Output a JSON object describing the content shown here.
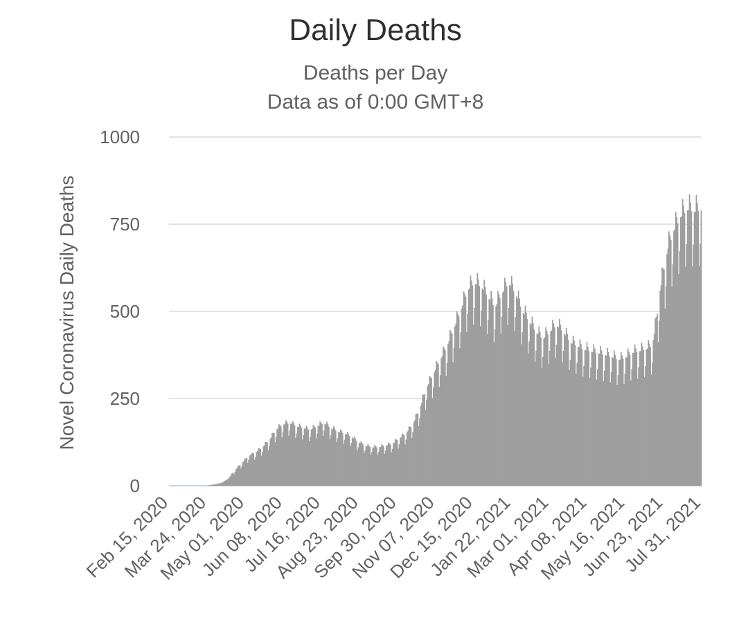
{
  "chart_data": {
    "type": "bar",
    "title": "Daily Deaths",
    "subtitle_lines": [
      "Deaths per Day",
      "Data as of 0:00 GMT+8"
    ],
    "xlabel": "",
    "ylabel": "Novel Coronavirus Daily Deaths",
    "ylim": [
      0,
      1000
    ],
    "yticks": [
      0,
      250,
      500,
      750,
      1000
    ],
    "grid": true,
    "x_start": "Feb 15, 2020",
    "x_end": "Aug 12, 2021",
    "xtick_labels": [
      "Feb 15, 2020",
      "Mar 24, 2020",
      "May 01, 2020",
      "Jun 08, 2020",
      "Jul 16, 2020",
      "Aug 23, 2020",
      "Sep 30, 2020",
      "Nov 07, 2020",
      "Dec 15, 2020",
      "Jan 22, 2021",
      "Mar 01, 2021",
      "Apr 08, 2021",
      "May 16, 2021",
      "Jun 23, 2021",
      "Jul 31, 2021"
    ],
    "bar_color": "#9e9e9e",
    "series": [
      {
        "weekly_points": [
          [
            "Feb 15, 2020",
            0
          ],
          [
            "Mar 24, 2020",
            0
          ],
          [
            "Apr 08, 2020",
            8
          ],
          [
            "Apr 15, 2020",
            20
          ],
          [
            "Apr 22, 2020",
            45
          ],
          [
            "Apr 29, 2020",
            65
          ],
          [
            "May 06, 2020",
            85
          ],
          [
            "May 13, 2020",
            95
          ],
          [
            "May 20, 2020",
            110
          ],
          [
            "May 27, 2020",
            130
          ],
          [
            "Jun 03, 2020",
            160
          ],
          [
            "Jun 10, 2020",
            175
          ],
          [
            "Jun 17, 2020",
            180
          ],
          [
            "Jun 24, 2020",
            170
          ],
          [
            "Jul 01, 2020",
            165
          ],
          [
            "Jul 08, 2020",
            160
          ],
          [
            "Jul 15, 2020",
            170
          ],
          [
            "Jul 22, 2020",
            180
          ],
          [
            "Jul 29, 2020",
            165
          ],
          [
            "Aug 05, 2020",
            155
          ],
          [
            "Aug 12, 2020",
            150
          ],
          [
            "Aug 19, 2020",
            140
          ],
          [
            "Aug 26, 2020",
            125
          ],
          [
            "Sep 02, 2020",
            115
          ],
          [
            "Sep 09, 2020",
            110
          ],
          [
            "Sep 16, 2020",
            110
          ],
          [
            "Sep 23, 2020",
            115
          ],
          [
            "Sep 30, 2020",
            120
          ],
          [
            "Oct 07, 2020",
            135
          ],
          [
            "Oct 14, 2020",
            150
          ],
          [
            "Oct 21, 2020",
            175
          ],
          [
            "Oct 28, 2020",
            220
          ],
          [
            "Nov 04, 2020",
            280
          ],
          [
            "Nov 11, 2020",
            320
          ],
          [
            "Nov 18, 2020",
            360
          ],
          [
            "Nov 25, 2020",
            400
          ],
          [
            "Dec 02, 2020",
            450
          ],
          [
            "Dec 09, 2020",
            500
          ],
          [
            "Dec 16, 2020",
            560
          ],
          [
            "Dec 23, 2020",
            580
          ],
          [
            "Dec 30, 2020",
            570
          ],
          [
            "Jan 06, 2021",
            540
          ],
          [
            "Jan 13, 2021",
            510
          ],
          [
            "Jan 20, 2021",
            550
          ],
          [
            "Jan 27, 2021",
            580
          ],
          [
            "Feb 03, 2021",
            550
          ],
          [
            "Feb 10, 2021",
            500
          ],
          [
            "Feb 17, 2021",
            470
          ],
          [
            "Feb 24, 2021",
            440
          ],
          [
            "Mar 03, 2021",
            420
          ],
          [
            "Mar 10, 2021",
            440
          ],
          [
            "Mar 17, 2021",
            460
          ],
          [
            "Mar 24, 2021",
            440
          ],
          [
            "Mar 31, 2021",
            410
          ],
          [
            "Apr 07, 2021",
            400
          ],
          [
            "Apr 14, 2021",
            390
          ],
          [
            "Apr 21, 2021",
            385
          ],
          [
            "Apr 28, 2021",
            380
          ],
          [
            "May 05, 2021",
            375
          ],
          [
            "May 12, 2021",
            370
          ],
          [
            "May 19, 2021",
            360
          ],
          [
            "May 26, 2021",
            365
          ],
          [
            "Jun 02, 2021",
            380
          ],
          [
            "Jun 09, 2021",
            385
          ],
          [
            "Jun 16, 2021",
            390
          ],
          [
            "Jun 23, 2021",
            400
          ],
          [
            "Jun 27, 2021",
            470
          ],
          [
            "Jul 01, 2021",
            560
          ],
          [
            "Jul 05, 2021",
            620
          ],
          [
            "Jul 09, 2021",
            680
          ],
          [
            "Jul 15, 2021",
            730
          ],
          [
            "Jul 22, 2021",
            770
          ],
          [
            "Jul 29, 2021",
            790
          ],
          [
            "Aug 05, 2021",
            785
          ],
          [
            "Aug 12, 2021",
            790
          ]
        ]
      }
    ]
  }
}
